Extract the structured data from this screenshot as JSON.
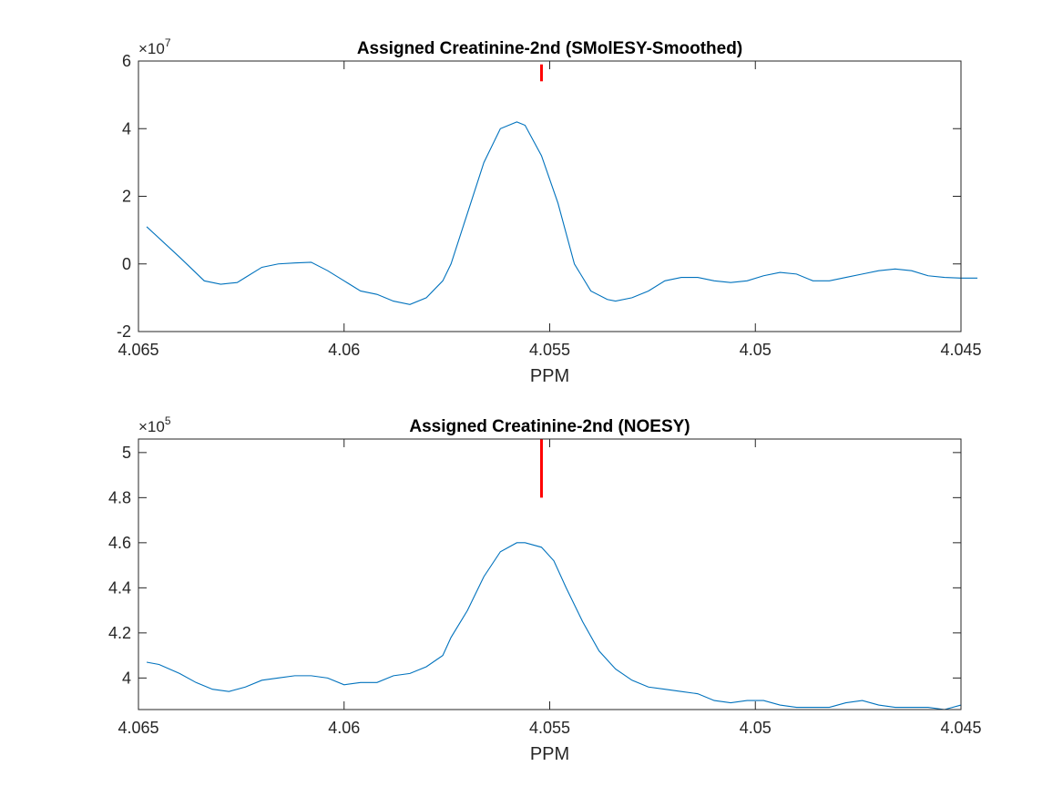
{
  "colors": {
    "series": "#0072bd",
    "marker": "#ff0000",
    "axes": "#262626",
    "background": "#ffffff"
  },
  "chart_data": [
    {
      "type": "line",
      "title": "Assigned Creatinine-2nd (SMolESY-Smoothed)",
      "xlabel": "PPM",
      "ylabel": "",
      "xlim": [
        4.045,
        4.065
      ],
      "x_reversed": true,
      "ylim": [
        -2,
        6
      ],
      "y_scale_exponent": "×10",
      "y_scale_power": "7",
      "xticks": [
        4.065,
        4.06,
        4.055,
        4.05,
        4.045
      ],
      "xtick_labels": [
        "4.065",
        "4.06",
        "4.055",
        "4.05",
        "4.045"
      ],
      "yticks": [
        -2,
        0,
        2,
        4,
        6
      ],
      "ytick_labels": [
        "-2",
        "0",
        "2",
        "4",
        "6"
      ],
      "grid": false,
      "marker_line": {
        "x": 4.0552,
        "y_from": 5.4,
        "y_to": 5.9
      },
      "series": [
        {
          "x": [
            4.0648,
            4.064,
            4.0634,
            4.063,
            4.0626,
            4.0624,
            4.062,
            4.0616,
            4.0612,
            4.0608,
            4.0604,
            4.06,
            4.0596,
            4.0592,
            4.0588,
            4.0584,
            4.058,
            4.0576,
            4.0574,
            4.057,
            4.0566,
            4.0562,
            4.0558,
            4.0556,
            4.0552,
            4.0548,
            4.0544,
            4.054,
            4.0536,
            4.0534,
            4.053,
            4.0526,
            4.0522,
            4.0518,
            4.0514,
            4.051,
            4.0506,
            4.0502,
            4.0498,
            4.0494,
            4.049,
            4.0486,
            4.0482,
            4.0478,
            4.0474,
            4.047,
            4.0466,
            4.0462,
            4.0458,
            4.0454,
            4.045,
            4.0446
          ],
          "y": [
            1.1,
            0.2,
            -0.5,
            -0.6,
            -0.55,
            -0.4,
            -0.1,
            0.0,
            0.03,
            0.05,
            -0.2,
            -0.5,
            -0.8,
            -0.9,
            -1.1,
            -1.2,
            -1.0,
            -0.5,
            0.0,
            1.5,
            3.0,
            4.0,
            4.2,
            4.1,
            3.2,
            1.8,
            0.0,
            -0.8,
            -1.05,
            -1.1,
            -1.0,
            -0.8,
            -0.5,
            -0.4,
            -0.4,
            -0.5,
            -0.55,
            -0.5,
            -0.35,
            -0.25,
            -0.3,
            -0.5,
            -0.5,
            -0.4,
            -0.3,
            -0.2,
            -0.15,
            -0.2,
            -0.35,
            -0.4,
            -0.42,
            -0.42
          ]
        }
      ]
    },
    {
      "type": "line",
      "title": "Assigned Creatinine-2nd (NOESY)",
      "xlabel": "PPM",
      "ylabel": "",
      "xlim": [
        4.045,
        4.065
      ],
      "x_reversed": true,
      "ylim": [
        3.86,
        5.06
      ],
      "y_scale_exponent": "×10",
      "y_scale_power": "5",
      "xticks": [
        4.065,
        4.06,
        4.055,
        4.05,
        4.045
      ],
      "xtick_labels": [
        "4.065",
        "4.06",
        "4.055",
        "4.05",
        "4.045"
      ],
      "yticks": [
        4.0,
        4.2,
        4.4,
        4.6,
        4.8,
        5.0
      ],
      "ytick_labels": [
        "4",
        "4.2",
        "4.4",
        "4.6",
        "4.8",
        "5"
      ],
      "grid": false,
      "marker_line": {
        "x": 4.0552,
        "y_from": 4.8,
        "y_to": 5.06
      },
      "series": [
        {
          "x": [
            4.0648,
            4.0645,
            4.064,
            4.0636,
            4.0632,
            4.0628,
            4.0624,
            4.062,
            4.0616,
            4.0612,
            4.0608,
            4.0604,
            4.06,
            4.0596,
            4.0592,
            4.0588,
            4.0584,
            4.058,
            4.0576,
            4.0574,
            4.057,
            4.0566,
            4.0562,
            4.0558,
            4.0556,
            4.0552,
            4.0549,
            4.0546,
            4.0542,
            4.0538,
            4.0534,
            4.053,
            4.0526,
            4.0522,
            4.0518,
            4.0514,
            4.051,
            4.0506,
            4.0502,
            4.0498,
            4.0494,
            4.049,
            4.0486,
            4.0482,
            4.0478,
            4.0474,
            4.047,
            4.0466,
            4.0462,
            4.0458,
            4.0454,
            4.045
          ],
          "y": [
            4.07,
            4.06,
            4.02,
            3.98,
            3.95,
            3.94,
            3.96,
            3.99,
            4.0,
            4.01,
            4.01,
            4.0,
            3.97,
            3.98,
            3.98,
            4.01,
            4.02,
            4.05,
            4.1,
            4.18,
            4.3,
            4.45,
            4.56,
            4.6,
            4.6,
            4.58,
            4.52,
            4.4,
            4.25,
            4.12,
            4.04,
            3.99,
            3.96,
            3.95,
            3.94,
            3.93,
            3.9,
            3.89,
            3.9,
            3.9,
            3.88,
            3.87,
            3.87,
            3.87,
            3.89,
            3.9,
            3.88,
            3.87,
            3.87,
            3.87,
            3.86,
            3.88
          ]
        }
      ]
    }
  ]
}
